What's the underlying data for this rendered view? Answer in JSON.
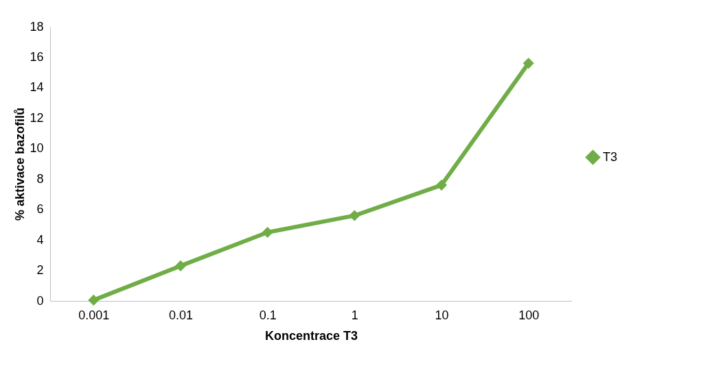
{
  "chart_data": {
    "type": "line",
    "xlabel": "Koncentrace T3",
    "ylabel": "% aktivace bazofilů",
    "categories": [
      "0.001",
      "0.01",
      "0.1",
      "1",
      "10",
      "100"
    ],
    "series": [
      {
        "name": "T3",
        "color": "#70ad47",
        "values": [
          0.05,
          2.3,
          4.5,
          5.6,
          7.6,
          15.6
        ]
      }
    ],
    "ylim": [
      0,
      18
    ],
    "yticks": [
      0,
      2,
      4,
      6,
      8,
      10,
      12,
      14,
      16,
      18
    ],
    "grid": false,
    "legend": "right",
    "marker": "diamond",
    "line_style": "solid"
  }
}
